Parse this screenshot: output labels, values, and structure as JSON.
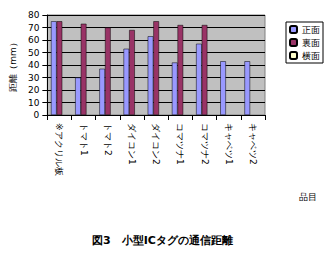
{
  "chart_data": {
    "type": "bar",
    "title": "図3　小型ICタグの通信距離",
    "x_label": "品目",
    "y_label": "距離（mm）",
    "categories": [
      "※アクリル板",
      "トマト1",
      "トマト2",
      "ダイコン1",
      "ダイコン2",
      "コマツナ1",
      "コマツナ2",
      "キャベツ1",
      "キャベツ2"
    ],
    "series": [
      {
        "name": "正面",
        "color": "#9999FF",
        "values": [
          75,
          30,
          37,
          53,
          63,
          42,
          57,
          43,
          43
        ]
      },
      {
        "name": "裏面",
        "color": "#993366",
        "values": [
          75,
          73,
          70,
          68,
          75,
          72,
          72,
          null,
          null
        ]
      },
      {
        "name": "横面",
        "color": "#FFFFCC",
        "values": [
          null,
          null,
          null,
          null,
          null,
          null,
          null,
          null,
          null
        ]
      }
    ],
    "ylim": [
      0,
      80
    ],
    "yticks": [
      0,
      10,
      20,
      30,
      40,
      50,
      60,
      70,
      80
    ],
    "grid": true,
    "legend": "right"
  }
}
